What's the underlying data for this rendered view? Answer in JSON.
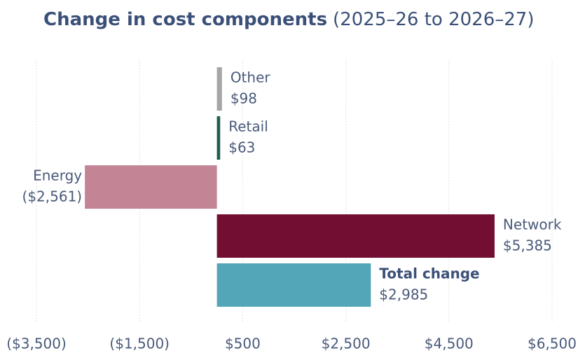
{
  "chart_data": {
    "type": "hbar",
    "title": "Change in cost components",
    "subtitle": "(2025–26 to 2026–27)",
    "categories": [
      "Other",
      "Retail",
      "Energy",
      "Network",
      "Total change"
    ],
    "values": [
      98,
      63,
      -2561,
      5385,
      2985
    ],
    "value_labels": [
      "$98",
      "$63",
      "($2,561)",
      "$5,385",
      "$2,985"
    ],
    "colors": [
      "#a6a6a6",
      "#1e5c4f",
      "#c38596",
      "#730e33",
      "#52a6b8"
    ],
    "xlim": [
      -3500,
      6500
    ],
    "xticks": [
      {
        "value": -3500,
        "label": "($3,500)"
      },
      {
        "value": -1500,
        "label": "($1,500)"
      },
      {
        "value": 500,
        "label": "$500"
      },
      {
        "value": 2500,
        "label": "$2,500"
      },
      {
        "value": 4500,
        "label": "$4,500"
      },
      {
        "value": 6500,
        "label": "$6,500"
      }
    ],
    "grid": true
  }
}
